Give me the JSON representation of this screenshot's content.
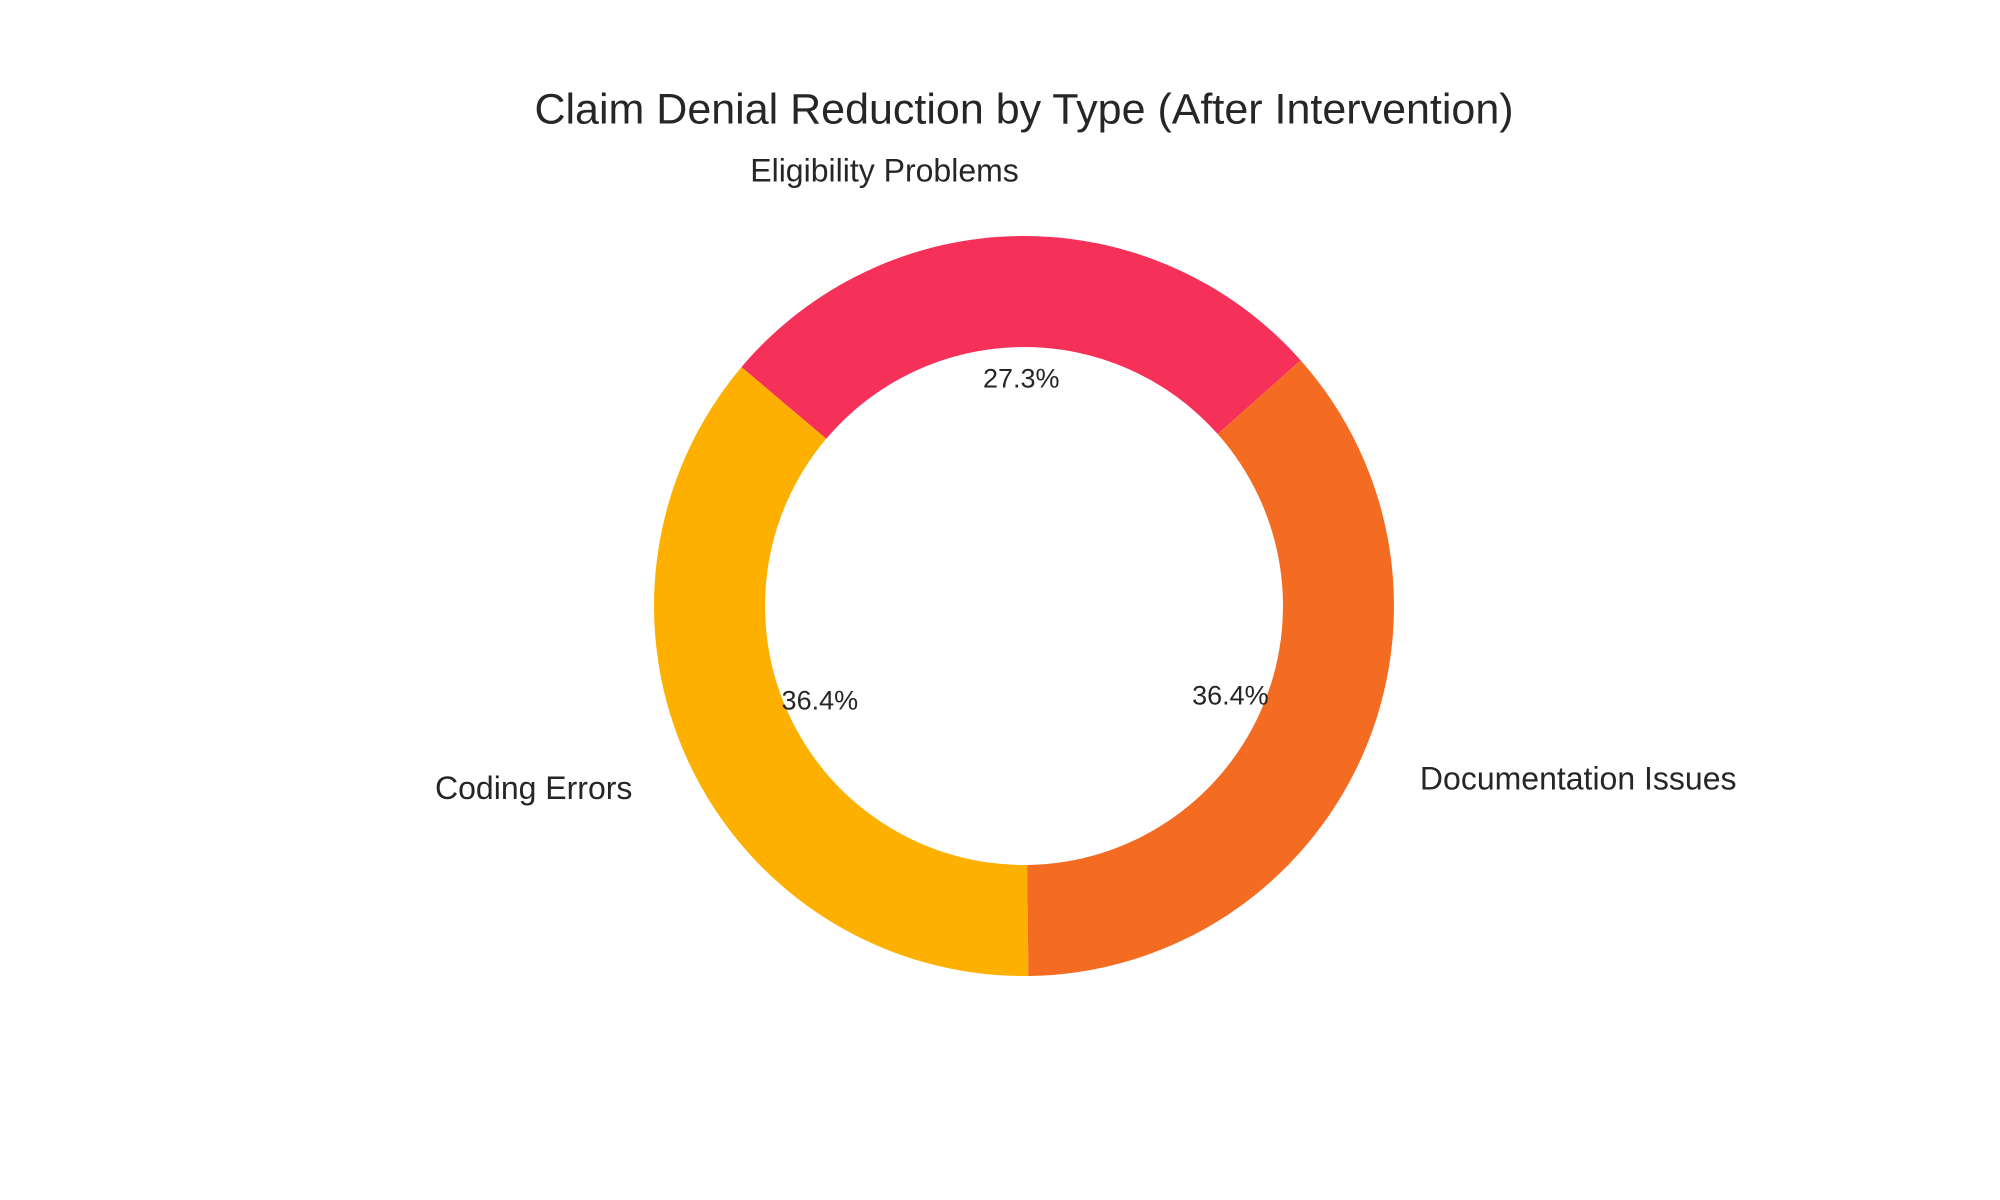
{
  "chart_data": {
    "type": "donut",
    "title": "Claim Denial Reduction by Type (After Intervention)",
    "categories": [
      "Eligibility Problems",
      "Coding Errors",
      "Documentation Issues"
    ],
    "values": [
      27.3,
      36.4,
      36.4
    ],
    "value_labels": [
      "27.3%",
      "36.4%",
      "36.4%"
    ],
    "colors": [
      "#F5315A",
      "#FDB000",
      "#F46B22"
    ]
  }
}
